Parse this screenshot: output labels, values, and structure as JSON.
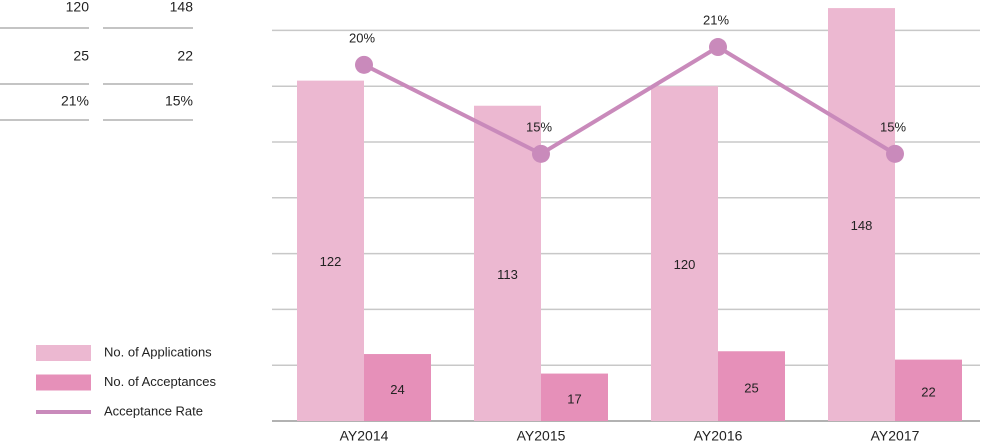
{
  "table": {
    "rows": [
      [
        "120",
        "148"
      ],
      [
        "25",
        "22"
      ],
      [
        "21%",
        "15%"
      ]
    ]
  },
  "chart_data": {
    "type": "bar",
    "categories": [
      "AY2014",
      "AY2015",
      "AY2016",
      "AY2017"
    ],
    "series": [
      {
        "name": "No. of Applications",
        "color": "#ecb8d1",
        "values": [
          122,
          113,
          120,
          148
        ]
      },
      {
        "name": "No. of Acceptances",
        "color": "#e690b9",
        "values": [
          24,
          17,
          25,
          22
        ]
      },
      {
        "name": "Acceptance Rate",
        "color": "#c98abb",
        "type": "line",
        "axis": "y2",
        "values": [
          20,
          15,
          21,
          15
        ],
        "value_labels": [
          "20%",
          "15%",
          "21%",
          "15%"
        ]
      }
    ],
    "ylim": [
      0,
      150
    ],
    "yticks": [
      0,
      20,
      40,
      60,
      80,
      100,
      120,
      140
    ],
    "y2lim": [
      0,
      23.5
    ],
    "grid": true,
    "legend": "bottom-left"
  }
}
